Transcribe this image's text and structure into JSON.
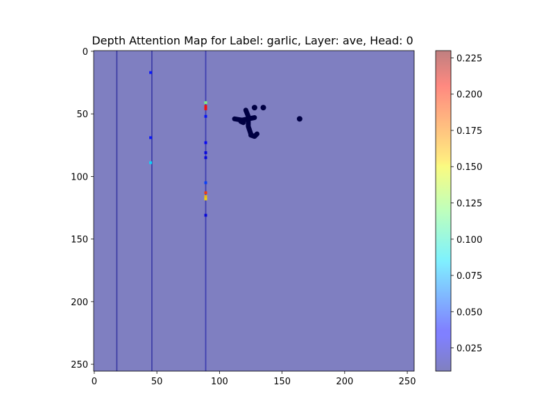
{
  "chart_data": {
    "type": "heatmap",
    "title": "Depth Attention Map for Label: garlic, Layer: ave, Head: 0",
    "xlabel": "",
    "ylabel": "",
    "xlim": [
      -0.5,
      255.5
    ],
    "ylim": [
      255.5,
      -0.5
    ],
    "x_ticks": [
      0,
      50,
      100,
      150,
      200,
      250
    ],
    "y_ticks": [
      0,
      50,
      100,
      150,
      200,
      250
    ],
    "colormap": "jet",
    "alpha": 0.5,
    "background_value": 0.01,
    "colorbar": {
      "min": 0.009,
      "max": 0.23,
      "ticks": [
        0.025,
        0.05,
        0.075,
        0.1,
        0.125,
        0.15,
        0.175,
        0.2,
        0.225
      ],
      "tick_labels": [
        "0.025",
        "0.050",
        "0.075",
        "0.100",
        "0.125",
        "0.150",
        "0.175",
        "0.200",
        "0.225"
      ]
    },
    "vertical_band_columns": [
      {
        "x": 89,
        "value": 0.016
      },
      {
        "x": 46,
        "value": 0.012
      },
      {
        "x": 18,
        "value": 0.011
      }
    ],
    "cells": [
      {
        "x": 45,
        "y": 17,
        "value": 0.04
      },
      {
        "x": 45,
        "y": 69,
        "value": 0.04
      },
      {
        "x": 45,
        "y": 89,
        "value": 0.085
      },
      {
        "x": 89,
        "y": 41,
        "value": 0.12
      },
      {
        "x": 89,
        "y": 44,
        "value": 0.2
      },
      {
        "x": 89,
        "y": 46,
        "value": 0.2
      },
      {
        "x": 89,
        "y": 52,
        "value": 0.04
      },
      {
        "x": 89,
        "y": 73,
        "value": 0.035
      },
      {
        "x": 89,
        "y": 81,
        "value": 0.03
      },
      {
        "x": 89,
        "y": 85,
        "value": 0.03
      },
      {
        "x": 89,
        "y": 105,
        "value": 0.05
      },
      {
        "x": 89,
        "y": 113,
        "value": 0.19
      },
      {
        "x": 89,
        "y": 116,
        "value": 0.16
      },
      {
        "x": 89,
        "y": 118,
        "value": 0.155
      },
      {
        "x": 89,
        "y": 131,
        "value": 0.03
      }
    ],
    "background_image": {
      "strokes": [
        {
          "points": [
            [
              121,
              47
            ],
            [
              123,
              52
            ],
            [
              123,
              60
            ],
            [
              125,
              66
            ]
          ]
        },
        {
          "points": [
            [
              112,
              54
            ],
            [
              118,
              55
            ],
            [
              123,
              54
            ],
            [
              128,
              53
            ]
          ]
        },
        {
          "points": [
            [
              125,
              67
            ],
            [
              128,
              68
            ],
            [
              130,
              66
            ]
          ]
        },
        {
          "points": [
            [
              117,
              56
            ],
            [
              119,
              57
            ]
          ]
        }
      ],
      "dots": [
        {
          "x": 128,
          "y": 45
        },
        {
          "x": 135,
          "y": 45
        },
        {
          "x": 164,
          "y": 54
        }
      ]
    }
  }
}
